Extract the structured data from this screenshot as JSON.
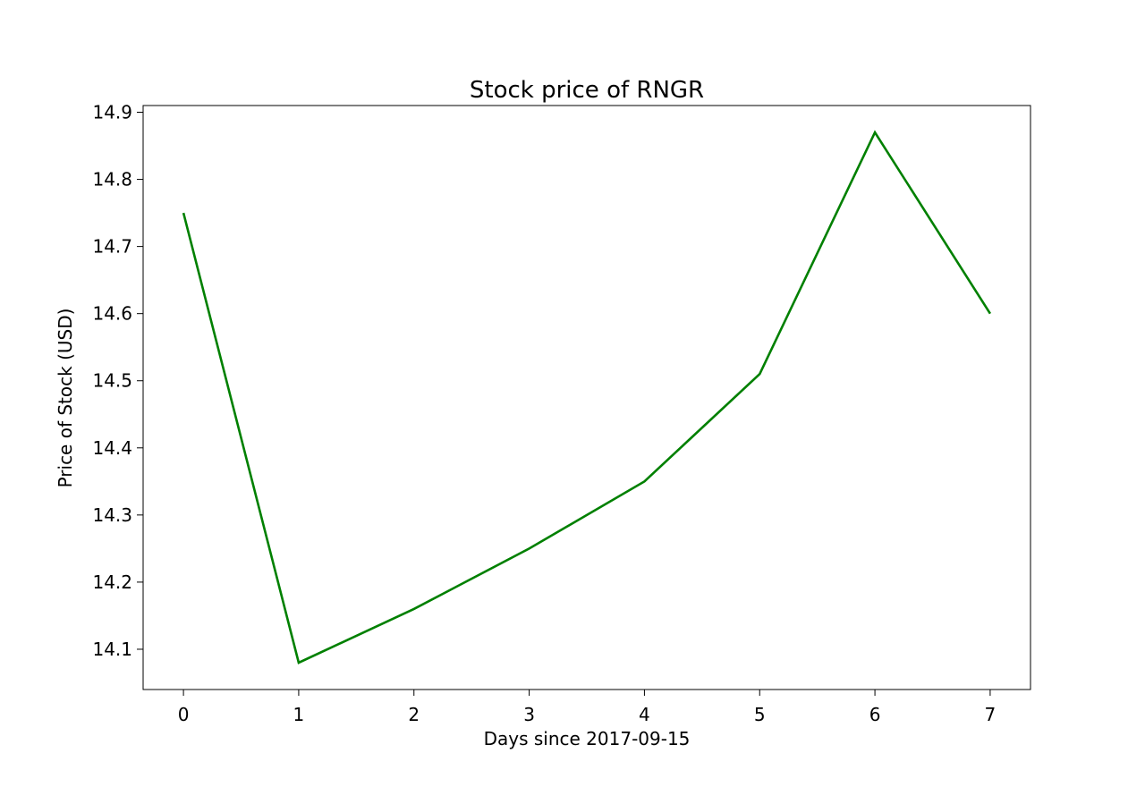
{
  "chart_data": {
    "type": "line",
    "title": "Stock price of RNGR",
    "xlabel": "Days since 2017-09-15",
    "ylabel": "Price of Stock (USD)",
    "x": [
      0,
      1,
      2,
      3,
      4,
      5,
      6,
      7
    ],
    "series": [
      {
        "values": [
          14.75,
          14.08,
          14.16,
          14.25,
          14.35,
          14.51,
          14.87,
          14.6
        ],
        "color": "#008000"
      }
    ],
    "xticks": [
      0,
      1,
      2,
      3,
      4,
      5,
      6,
      7
    ],
    "yticks": [
      14.1,
      14.2,
      14.3,
      14.4,
      14.5,
      14.6,
      14.7,
      14.8,
      14.9
    ],
    "xlim": [
      -0.35,
      7.35
    ],
    "ylim": [
      14.04,
      14.91
    ],
    "grid": false,
    "legend": "none"
  }
}
